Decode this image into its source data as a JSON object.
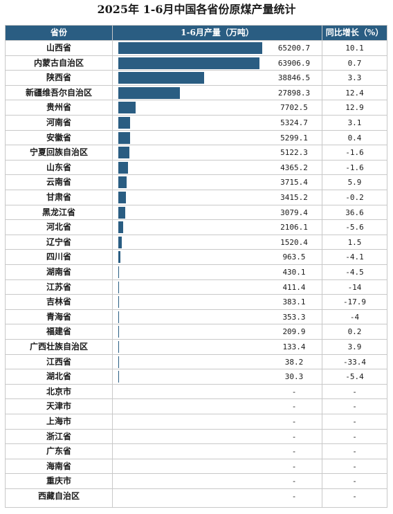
{
  "title": "2025年 1-6月中国各省份原煤产量统计",
  "columns": {
    "province": "省份",
    "output": "1-6月产量（万吨）",
    "growth": "同比增长（%）"
  },
  "colors": {
    "bar": "#2a5d82",
    "header": "#2a5d82"
  },
  "chart_data": {
    "type": "table",
    "bar_max": 65200.7,
    "rows": [
      {
        "province": "山西省",
        "output": "65200.7",
        "growth": "10.1",
        "value": 65200.7
      },
      {
        "province": "内蒙古自治区",
        "output": "63906.9",
        "growth": "0.7",
        "value": 63906.9
      },
      {
        "province": "陕西省",
        "output": "38846.5",
        "growth": "3.3",
        "value": 38846.5
      },
      {
        "province": "新疆维吾尔自治区",
        "output": "27898.3",
        "growth": "12.4",
        "value": 27898.3
      },
      {
        "province": "贵州省",
        "output": "7702.5",
        "growth": "12.9",
        "value": 7702.5
      },
      {
        "province": "河南省",
        "output": "5324.7",
        "growth": "3.1",
        "value": 5324.7
      },
      {
        "province": "安徽省",
        "output": "5299.1",
        "growth": "0.4",
        "value": 5299.1
      },
      {
        "province": "宁夏回族自治区",
        "output": "5122.3",
        "growth": "-1.6",
        "value": 5122.3
      },
      {
        "province": "山东省",
        "output": "4365.2",
        "growth": "-1.6",
        "value": 4365.2
      },
      {
        "province": "云南省",
        "output": "3715.4",
        "growth": "5.9",
        "value": 3715.4
      },
      {
        "province": "甘肃省",
        "output": "3415.2",
        "growth": "-0.2",
        "value": 3415.2
      },
      {
        "province": "黑龙江省",
        "output": "3079.4",
        "growth": "36.6",
        "value": 3079.4
      },
      {
        "province": "河北省",
        "output": "2106.1",
        "growth": "-5.6",
        "value": 2106.1
      },
      {
        "province": "辽宁省",
        "output": "1520.4",
        "growth": "1.5",
        "value": 1520.4
      },
      {
        "province": "四川省",
        "output": "963.5",
        "growth": "-4.1",
        "value": 963.5
      },
      {
        "province": "湖南省",
        "output": "430.1",
        "growth": "-4.5",
        "value": 430.1
      },
      {
        "province": "江苏省",
        "output": "411.4",
        "growth": "-14",
        "value": 411.4
      },
      {
        "province": "吉林省",
        "output": "383.1",
        "growth": "-17.9",
        "value": 383.1
      },
      {
        "province": "青海省",
        "output": "353.3",
        "growth": "-4",
        "value": 353.3
      },
      {
        "province": "福建省",
        "output": "209.9",
        "growth": "0.2",
        "value": 209.9
      },
      {
        "province": "广西壮族自治区",
        "output": "133.4",
        "growth": "3.9",
        "value": 133.4
      },
      {
        "province": "江西省",
        "output": "38.2",
        "growth": "-33.4",
        "value": 38.2
      },
      {
        "province": "湖北省",
        "output": "30.3",
        "growth": "-5.4",
        "value": 30.3
      },
      {
        "province": "北京市",
        "output": "-",
        "growth": "-",
        "value": 0
      },
      {
        "province": "天津市",
        "output": "-",
        "growth": "-",
        "value": 0
      },
      {
        "province": "上海市",
        "output": "-",
        "growth": "-",
        "value": 0
      },
      {
        "province": "浙江省",
        "output": "-",
        "growth": "-",
        "value": 0
      },
      {
        "province": "广东省",
        "output": "-",
        "growth": "-",
        "value": 0
      },
      {
        "province": "海南省",
        "output": "-",
        "growth": "-",
        "value": 0
      },
      {
        "province": "重庆市",
        "output": "-",
        "growth": "-",
        "value": 0
      },
      {
        "province": "西藏自治区",
        "output": "-",
        "growth": "-",
        "value": 0
      }
    ]
  }
}
